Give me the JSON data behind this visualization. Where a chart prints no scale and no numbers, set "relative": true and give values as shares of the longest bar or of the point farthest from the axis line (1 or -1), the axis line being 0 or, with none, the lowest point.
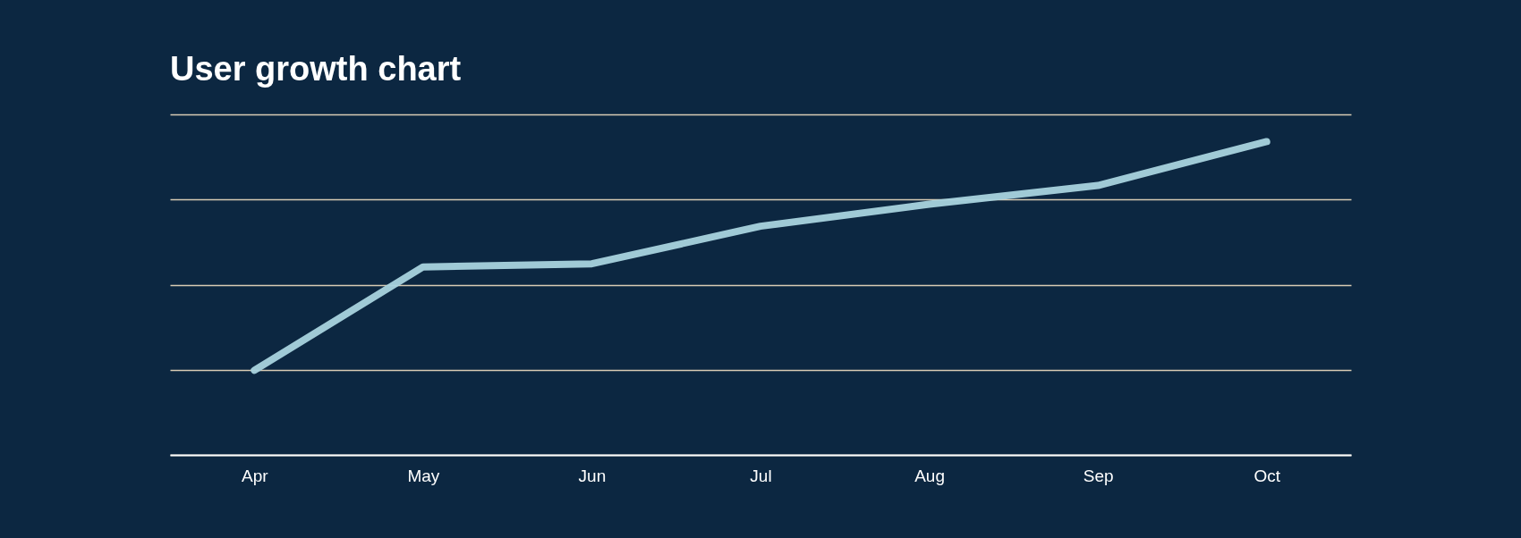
{
  "chart_data": {
    "type": "line",
    "title": "User growth chart",
    "relative": true,
    "grid": "y",
    "categories": [
      "Apr",
      "May",
      "Jun",
      "Jul",
      "Aug",
      "Sep",
      "Oct"
    ],
    "series": [
      {
        "color": "#a9d3de",
        "values": [
          0.27,
          0.6,
          0.61,
          0.73,
          0.8,
          0.86,
          1.0
        ]
      }
    ]
  }
}
